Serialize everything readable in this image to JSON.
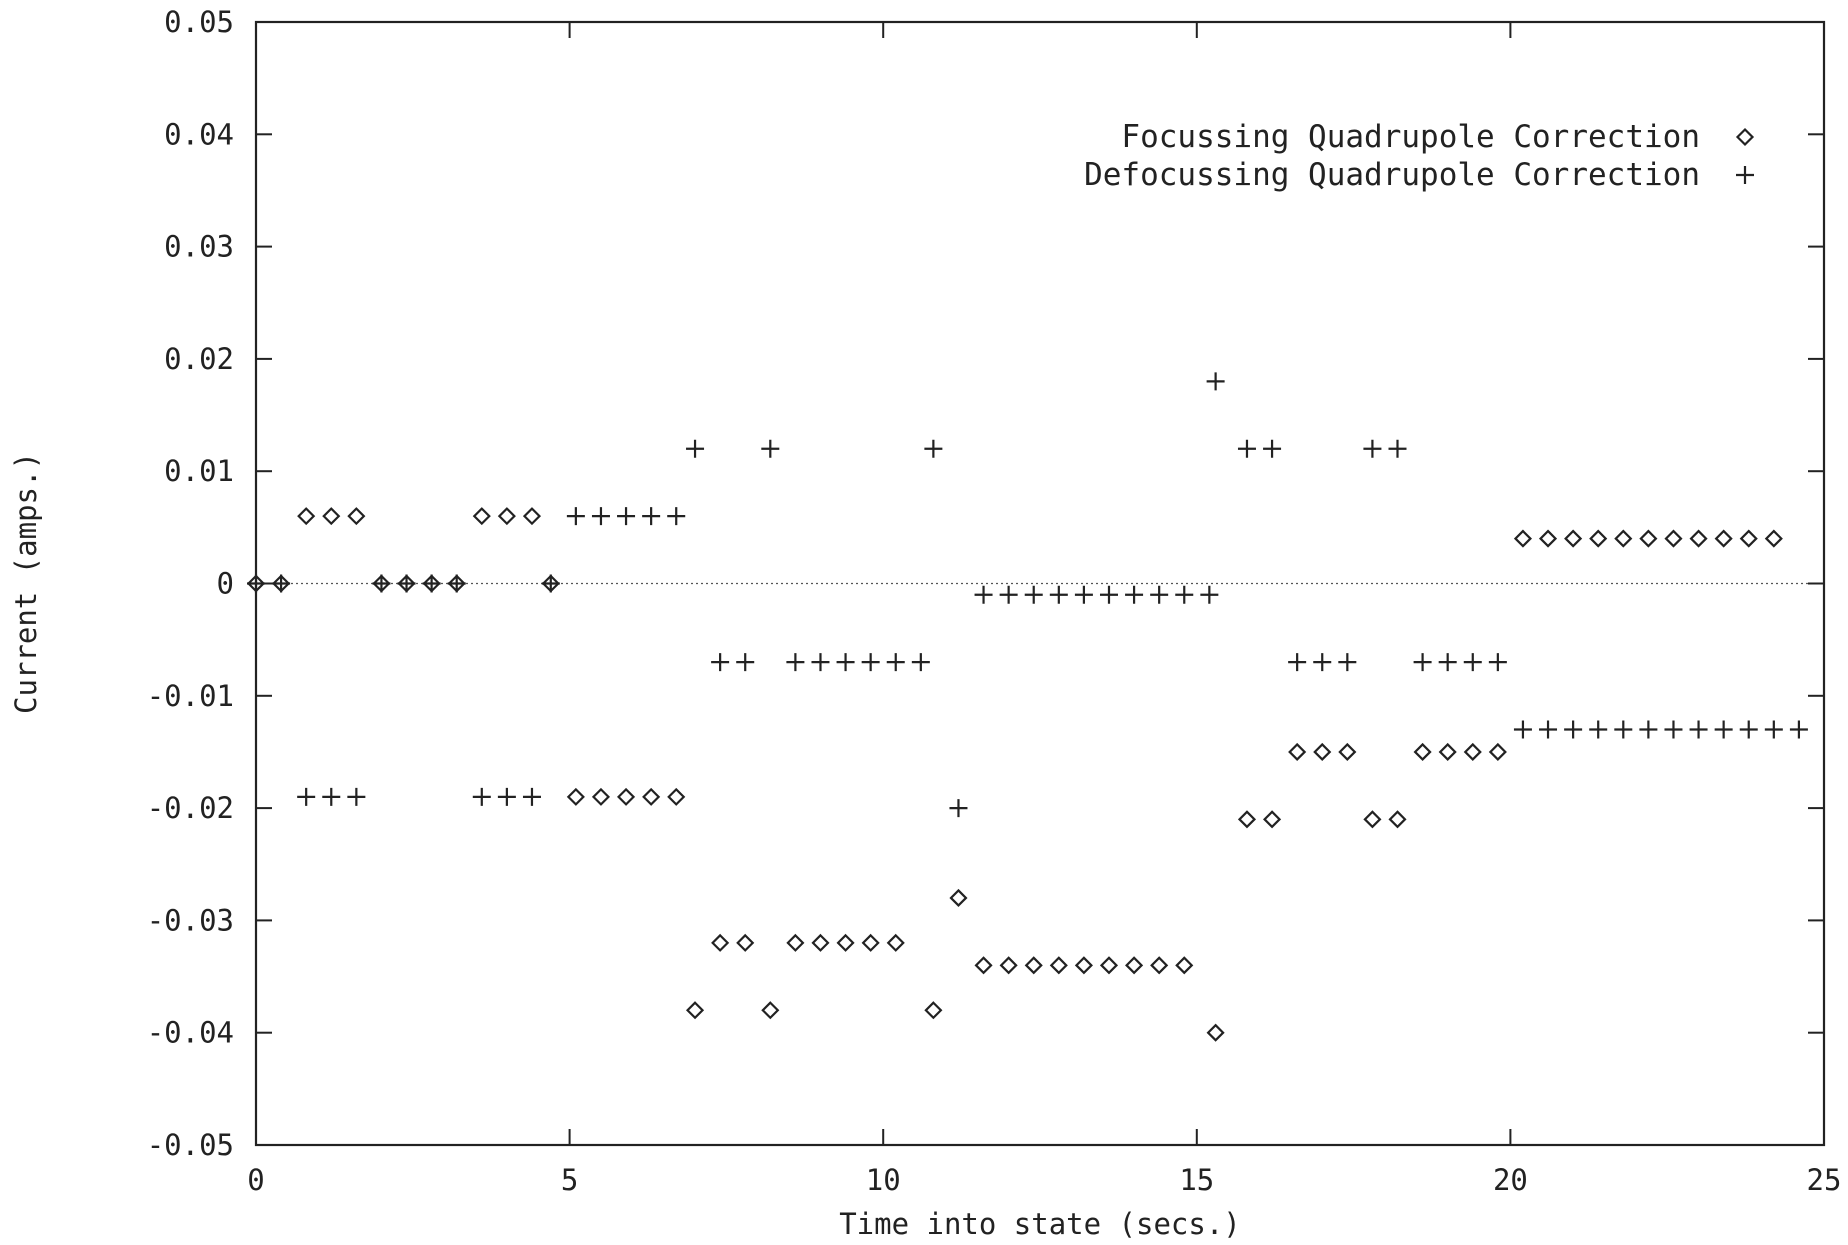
{
  "chart_data": {
    "type": "scatter",
    "xlabel": "Time into state (secs.)",
    "ylabel": "Current (amps.)",
    "xlim": [
      0,
      25
    ],
    "ylim": [
      -0.05,
      0.05
    ],
    "x_ticks": [
      0,
      5,
      10,
      15,
      20,
      25
    ],
    "x_tick_labels": [
      "0",
      "5",
      "10",
      "15",
      "20",
      "25"
    ],
    "y_ticks": [
      -0.05,
      -0.04,
      -0.03,
      -0.02,
      -0.01,
      0,
      0.01,
      0.02,
      0.03,
      0.04,
      0.05
    ],
    "y_tick_labels": [
      "-0.05",
      "-0.04",
      "-0.03",
      "-0.02",
      "-0.01",
      "0",
      "0.01",
      "0.02",
      "0.03",
      "0.04",
      "0.05"
    ],
    "grid": false,
    "zero_line": true,
    "legend_position": "top-right",
    "series": [
      {
        "name": "Focussing Quadrupole Correction",
        "marker": "diamond",
        "points": [
          [
            0.0,
            0.0
          ],
          [
            0.4,
            0.0
          ],
          [
            0.8,
            0.006
          ],
          [
            1.2,
            0.006
          ],
          [
            1.6,
            0.006
          ],
          [
            2.0,
            0.0
          ],
          [
            2.4,
            0.0
          ],
          [
            2.8,
            0.0
          ],
          [
            3.2,
            0.0
          ],
          [
            3.6,
            0.006
          ],
          [
            4.0,
            0.006
          ],
          [
            4.4,
            0.006
          ],
          [
            4.7,
            0.0
          ],
          [
            5.1,
            -0.019
          ],
          [
            5.5,
            -0.019
          ],
          [
            5.9,
            -0.019
          ],
          [
            6.3,
            -0.019
          ],
          [
            6.7,
            -0.019
          ],
          [
            7.0,
            -0.038
          ],
          [
            7.4,
            -0.032
          ],
          [
            7.8,
            -0.032
          ],
          [
            8.2,
            -0.038
          ],
          [
            8.6,
            -0.032
          ],
          [
            9.0,
            -0.032
          ],
          [
            9.4,
            -0.032
          ],
          [
            9.8,
            -0.032
          ],
          [
            10.2,
            -0.032
          ],
          [
            10.8,
            -0.038
          ],
          [
            11.2,
            -0.028
          ],
          [
            11.6,
            -0.034
          ],
          [
            12.0,
            -0.034
          ],
          [
            12.4,
            -0.034
          ],
          [
            12.8,
            -0.034
          ],
          [
            13.2,
            -0.034
          ],
          [
            13.6,
            -0.034
          ],
          [
            14.0,
            -0.034
          ],
          [
            14.4,
            -0.034
          ],
          [
            14.8,
            -0.034
          ],
          [
            15.3,
            -0.04
          ],
          [
            15.8,
            -0.021
          ],
          [
            16.2,
            -0.021
          ],
          [
            16.6,
            -0.015
          ],
          [
            17.0,
            -0.015
          ],
          [
            17.4,
            -0.015
          ],
          [
            17.8,
            -0.021
          ],
          [
            18.2,
            -0.021
          ],
          [
            18.6,
            -0.015
          ],
          [
            19.0,
            -0.015
          ],
          [
            19.4,
            -0.015
          ],
          [
            19.8,
            -0.015
          ],
          [
            20.2,
            0.004
          ],
          [
            20.6,
            0.004
          ],
          [
            21.0,
            0.004
          ],
          [
            21.4,
            0.004
          ],
          [
            21.8,
            0.004
          ],
          [
            22.2,
            0.004
          ],
          [
            22.6,
            0.004
          ],
          [
            23.0,
            0.004
          ],
          [
            23.4,
            0.004
          ],
          [
            23.8,
            0.004
          ],
          [
            24.2,
            0.004
          ]
        ]
      },
      {
        "name": "Defocussing Quadrupole Correction",
        "marker": "plus",
        "points": [
          [
            0.0,
            0.0
          ],
          [
            0.4,
            0.0
          ],
          [
            0.8,
            -0.019
          ],
          [
            1.2,
            -0.019
          ],
          [
            1.6,
            -0.019
          ],
          [
            2.0,
            0.0
          ],
          [
            2.4,
            0.0
          ],
          [
            2.8,
            0.0
          ],
          [
            3.2,
            0.0
          ],
          [
            3.6,
            -0.019
          ],
          [
            4.0,
            -0.019
          ],
          [
            4.4,
            -0.019
          ],
          [
            4.7,
            0.0
          ],
          [
            5.1,
            0.006
          ],
          [
            5.5,
            0.006
          ],
          [
            5.9,
            0.006
          ],
          [
            6.3,
            0.006
          ],
          [
            6.7,
            0.006
          ],
          [
            7.0,
            0.012
          ],
          [
            7.4,
            -0.007
          ],
          [
            7.8,
            -0.007
          ],
          [
            8.2,
            0.012
          ],
          [
            8.6,
            -0.007
          ],
          [
            9.0,
            -0.007
          ],
          [
            9.4,
            -0.007
          ],
          [
            9.8,
            -0.007
          ],
          [
            10.2,
            -0.007
          ],
          [
            10.6,
            -0.007
          ],
          [
            10.8,
            0.012
          ],
          [
            11.2,
            -0.02
          ],
          [
            11.6,
            -0.001
          ],
          [
            12.0,
            -0.001
          ],
          [
            12.4,
            -0.001
          ],
          [
            12.8,
            -0.001
          ],
          [
            13.2,
            -0.001
          ],
          [
            13.6,
            -0.001
          ],
          [
            14.0,
            -0.001
          ],
          [
            14.4,
            -0.001
          ],
          [
            14.8,
            -0.001
          ],
          [
            15.2,
            -0.001
          ],
          [
            15.3,
            0.018
          ],
          [
            15.8,
            0.012
          ],
          [
            16.2,
            0.012
          ],
          [
            16.6,
            -0.007
          ],
          [
            17.0,
            -0.007
          ],
          [
            17.4,
            -0.007
          ],
          [
            17.8,
            0.012
          ],
          [
            18.2,
            0.012
          ],
          [
            18.6,
            -0.007
          ],
          [
            19.0,
            -0.007
          ],
          [
            19.4,
            -0.007
          ],
          [
            19.8,
            -0.007
          ],
          [
            20.2,
            -0.013
          ],
          [
            20.6,
            -0.013
          ],
          [
            21.0,
            -0.013
          ],
          [
            21.4,
            -0.013
          ],
          [
            21.8,
            -0.013
          ],
          [
            22.2,
            -0.013
          ],
          [
            22.6,
            -0.013
          ],
          [
            23.0,
            -0.013
          ],
          [
            23.4,
            -0.013
          ],
          [
            23.8,
            -0.013
          ],
          [
            24.2,
            -0.013
          ],
          [
            24.6,
            -0.013
          ]
        ]
      }
    ]
  }
}
